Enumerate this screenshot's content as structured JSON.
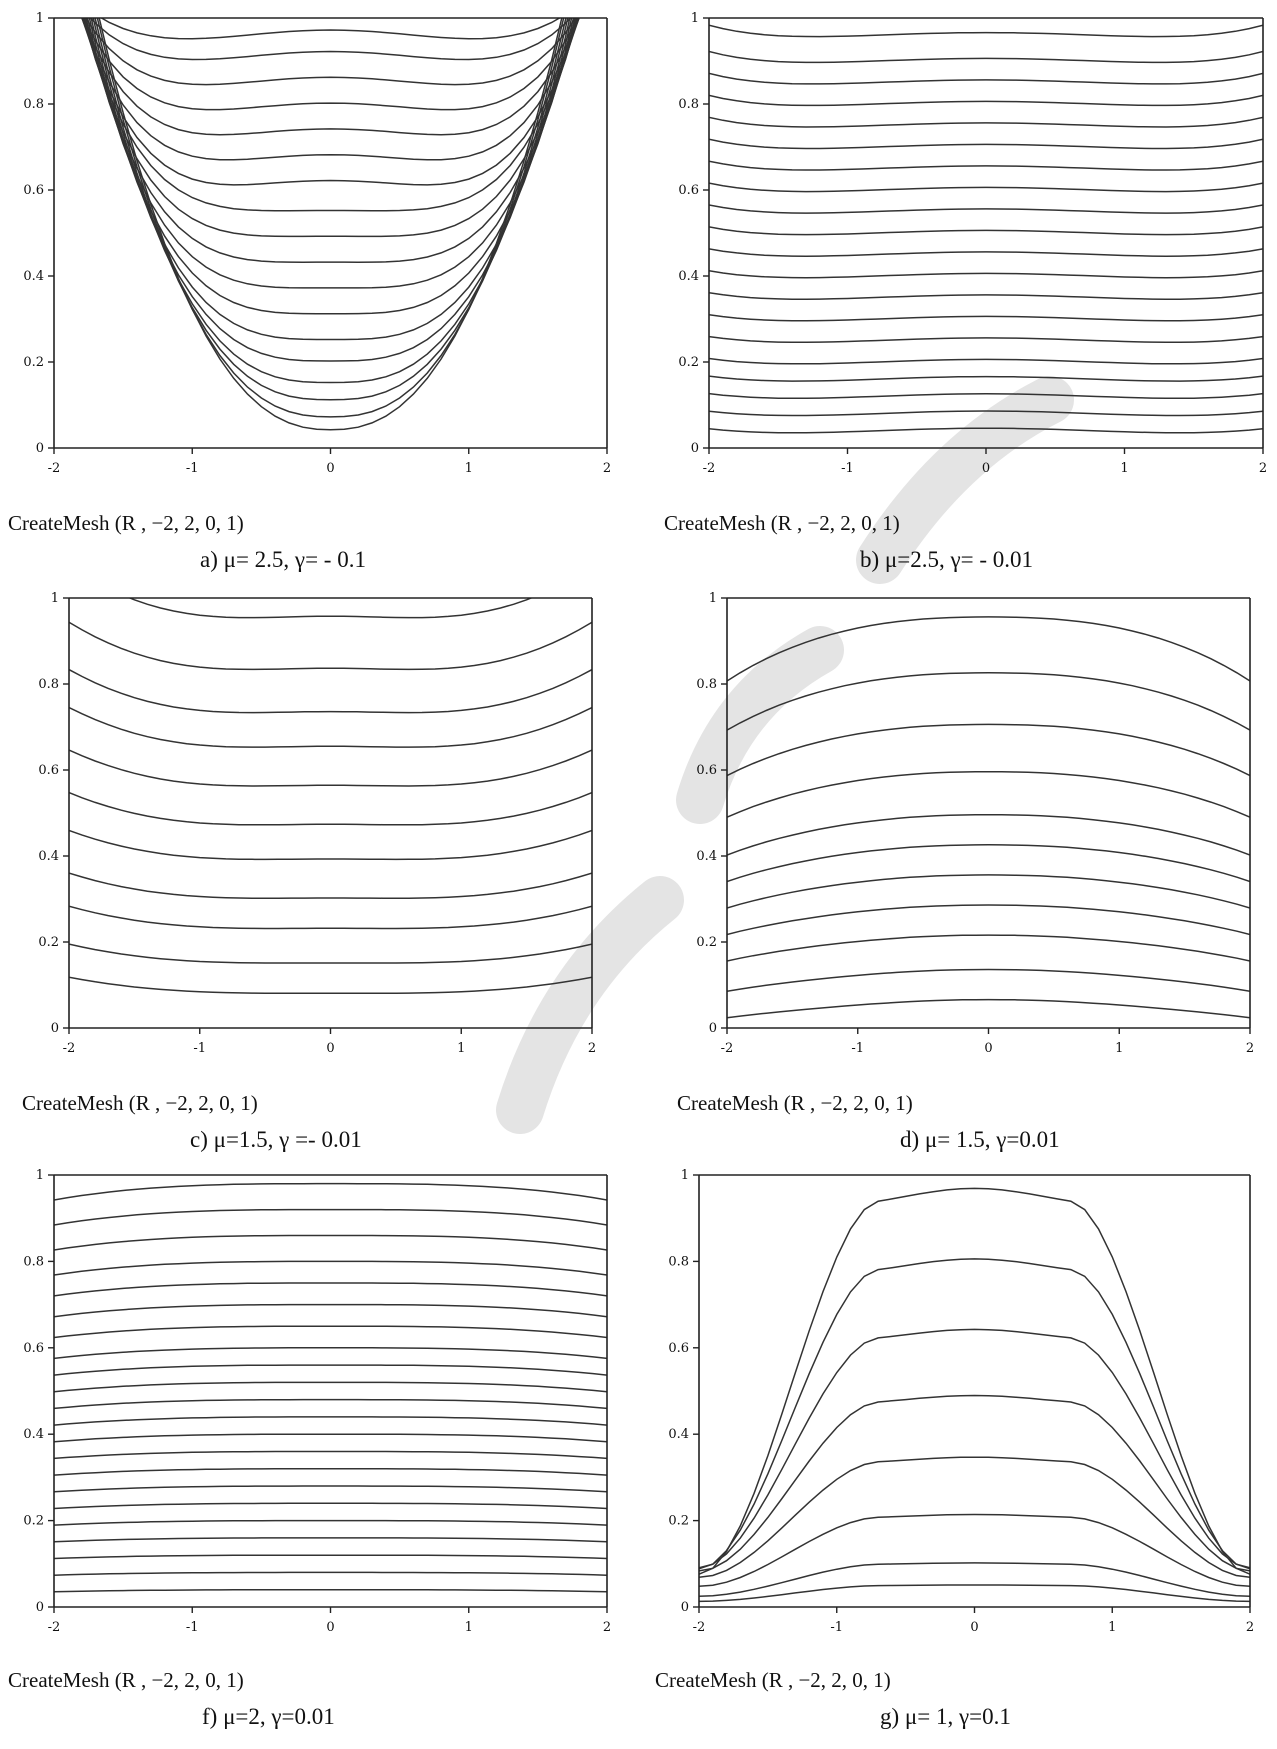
{
  "figure": {
    "panels": [
      {
        "id": "a",
        "caption": "a) μ= 2.5, γ= - 0.1",
        "mesh_label": "CreateMesh (R , −2, 2, 0, 1)"
      },
      {
        "id": "b",
        "caption": "b) μ=2.5, γ= - 0.01",
        "mesh_label": "CreateMesh (R , −2, 2, 0, 1)"
      },
      {
        "id": "c",
        "caption": "c) μ=1.5,  γ =- 0.01",
        "mesh_label": "CreateMesh (R , −2, 2, 0, 1)"
      },
      {
        "id": "d",
        "caption": "d) μ= 1.5,  γ=0.01",
        "mesh_label": "CreateMesh (R , −2, 2, 0, 1)"
      },
      {
        "id": "f",
        "caption": "f) μ=2,   γ=0.01",
        "mesh_label": "CreateMesh (R , −2, 2, 0, 1)"
      },
      {
        "id": "g",
        "caption": "g) μ= 1,  γ=0.1",
        "mesh_label": "CreateMesh (R , −2, 2, 0, 1)"
      }
    ]
  },
  "chart_data": [
    {
      "type": "contour",
      "panel": "a",
      "xlim": [
        -2,
        2
      ],
      "ylim": [
        0,
        1
      ],
      "xticks": [
        "-2",
        "-1",
        "0",
        "1",
        "2"
      ],
      "yticks": [
        "0",
        "0.2",
        "0.4",
        "0.6",
        "0.8",
        "1"
      ],
      "xlabel": "",
      "ylabel": "",
      "contour_shape": "u-bowl",
      "levels": [
        0.04,
        0.07,
        0.11,
        0.15,
        0.2,
        0.25,
        0.31,
        0.37,
        0.43,
        0.49,
        0.55,
        0.61,
        0.67,
        0.73,
        0.79,
        0.85,
        0.91,
        0.96
      ]
    },
    {
      "type": "contour",
      "panel": "b",
      "xlim": [
        -2,
        2
      ],
      "ylim": [
        0,
        1
      ],
      "xticks": [
        "-2",
        "-1",
        "0",
        "1",
        "2"
      ],
      "yticks": [
        "0",
        "0.2",
        "0.4",
        "0.6",
        "0.8",
        "1"
      ],
      "xlabel": "",
      "ylabel": "",
      "contour_shape": "flat-slight-up",
      "levels": [
        0.04,
        0.08,
        0.12,
        0.16,
        0.2,
        0.25,
        0.3,
        0.35,
        0.4,
        0.45,
        0.5,
        0.55,
        0.6,
        0.65,
        0.7,
        0.75,
        0.8,
        0.85,
        0.9,
        0.96
      ]
    },
    {
      "type": "contour",
      "panel": "c",
      "xlim": [
        -2,
        2
      ],
      "ylim": [
        0,
        1
      ],
      "xticks": [
        "-2",
        "-1",
        "0",
        "1",
        "2"
      ],
      "yticks": [
        "0",
        "0.2",
        "0.4",
        "0.6",
        "0.8",
        "1"
      ],
      "xlabel": "",
      "ylabel": "",
      "contour_shape": "mild-up",
      "levels": [
        0.08,
        0.15,
        0.23,
        0.3,
        0.39,
        0.47,
        0.56,
        0.65,
        0.73,
        0.83,
        0.95
      ]
    },
    {
      "type": "contour",
      "panel": "d",
      "xlim": [
        -2,
        2
      ],
      "ylim": [
        0,
        1
      ],
      "xticks": [
        "-2",
        "-1",
        "0",
        "1",
        "2"
      ],
      "yticks": [
        "0",
        "0.2",
        "0.4",
        "0.6",
        "0.8",
        "1"
      ],
      "xlabel": "",
      "ylabel": "",
      "contour_shape": "mild-down",
      "levels": [
        0.06,
        0.13,
        0.21,
        0.28,
        0.35,
        0.42,
        0.49,
        0.59,
        0.7,
        0.82,
        0.95
      ]
    },
    {
      "type": "contour",
      "panel": "f",
      "xlim": [
        -2,
        2
      ],
      "ylim": [
        0,
        1
      ],
      "xticks": [
        "-2",
        "-1",
        "0",
        "1",
        "2"
      ],
      "yticks": [
        "0",
        "0.2",
        "0.4",
        "0.6",
        "0.8",
        "1"
      ],
      "xlabel": "",
      "ylabel": "",
      "contour_shape": "flat-slight-down",
      "levels": [
        0.04,
        0.08,
        0.12,
        0.16,
        0.2,
        0.24,
        0.28,
        0.32,
        0.36,
        0.4,
        0.44,
        0.48,
        0.52,
        0.56,
        0.6,
        0.65,
        0.7,
        0.75,
        0.8,
        0.86,
        0.92,
        0.98
      ]
    },
    {
      "type": "contour",
      "panel": "g",
      "xlim": [
        -2,
        2
      ],
      "ylim": [
        0,
        1
      ],
      "xticks": [
        "-2",
        "-1",
        "0",
        "1",
        "2"
      ],
      "yticks": [
        "0",
        "0.2",
        "0.4",
        "0.6",
        "0.8",
        "1"
      ],
      "xlabel": "",
      "ylabel": "",
      "contour_shape": "plateau",
      "levels": [
        0.05,
        0.1,
        0.21,
        0.34,
        0.48,
        0.63,
        0.79,
        0.95
      ]
    }
  ]
}
